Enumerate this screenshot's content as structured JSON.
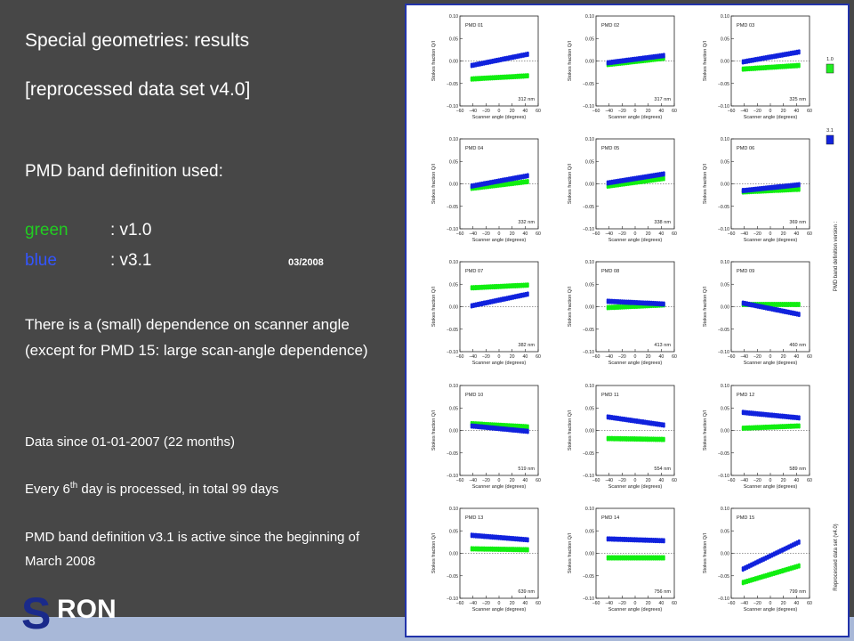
{
  "slide": {
    "title": "Special geometries: results",
    "subtitle": "[reprocessed data set v4.0]",
    "band_heading": "PMD band definition used:",
    "legend": [
      {
        "name": "green",
        "version": ": v1.0",
        "color": "#22cc22"
      },
      {
        "name": "blue",
        "version": ": v3.1",
        "color": "#3355ff"
      }
    ],
    "date": "03/2008",
    "dependence_text": "There is a (small) dependence on scanner angle (except for PMD 15: large scan-angle dependence)",
    "data_since": "Data since 01-01-2007 (22 months)",
    "every_pre": "Every 6",
    "every_sup": "th",
    "every_post": " day is processed, in total 99 days",
    "active_since": "PMD band definition v3.1 is active since the beginning of March 2008",
    "logo": "SRON"
  },
  "chart_data": {
    "type": "scatter",
    "xlabel": "Scanner angle (degrees)",
    "ylabel": "Stokes fraction Q/I",
    "xticks": [
      "−60",
      "−40",
      "−20",
      "0",
      "20",
      "40",
      "60"
    ],
    "yticks": [
      "−0.10",
      "−0.05",
      "0.00",
      "0.05",
      "0.10"
    ],
    "xlim": [
      -60,
      60
    ],
    "ylim": [
      -0.1,
      0.1
    ],
    "right_label_top": "PMD band definition version :",
    "right_label_bottom": "Reprocessed data set (v4.0)",
    "version_legend": [
      {
        "label": "1.0",
        "color": "#22ee22"
      },
      {
        "label": "3.1",
        "color": "#1122dd"
      }
    ],
    "panels": [
      {
        "name": "PMD 01",
        "wavelength": "312 nm",
        "green": [
          -0.04,
          -0.033
        ],
        "blue": [
          -0.01,
          0.015
        ]
      },
      {
        "name": "PMD 02",
        "wavelength": "317 nm",
        "green": [
          -0.008,
          0.006
        ],
        "blue": [
          -0.004,
          0.012
        ]
      },
      {
        "name": "PMD 03",
        "wavelength": "325 nm",
        "green": [
          -0.018,
          -0.01
        ],
        "blue": [
          -0.002,
          0.02
        ]
      },
      {
        "name": "PMD 04",
        "wavelength": "332 nm",
        "green": [
          -0.01,
          0.005
        ],
        "blue": [
          -0.005,
          0.018
        ]
      },
      {
        "name": "PMD 05",
        "wavelength": "338 nm",
        "green": [
          -0.005,
          0.012
        ],
        "blue": [
          0.002,
          0.022
        ]
      },
      {
        "name": "PMD 06",
        "wavelength": "369 nm",
        "green": [
          -0.018,
          -0.012
        ],
        "blue": [
          -0.015,
          -0.002
        ]
      },
      {
        "name": "PMD 07",
        "wavelength": "382 nm",
        "green": [
          0.042,
          0.048
        ],
        "blue": [
          0.002,
          0.028
        ]
      },
      {
        "name": "PMD 08",
        "wavelength": "413 nm",
        "green": [
          -0.002,
          0.004
        ],
        "blue": [
          0.012,
          0.006
        ]
      },
      {
        "name": "PMD 09",
        "wavelength": "460 nm",
        "green": [
          0.005,
          0.005
        ],
        "blue": [
          0.008,
          -0.017
        ]
      },
      {
        "name": "PMD 10",
        "wavelength": "519 nm",
        "green": [
          0.015,
          0.008
        ],
        "blue": [
          0.01,
          -0.002
        ]
      },
      {
        "name": "PMD 11",
        "wavelength": "554 nm",
        "green": [
          -0.018,
          -0.02
        ],
        "blue": [
          0.03,
          0.012
        ]
      },
      {
        "name": "PMD 12",
        "wavelength": "589 nm",
        "green": [
          0.005,
          0.01
        ],
        "blue": [
          0.04,
          0.028
        ]
      },
      {
        "name": "PMD 13",
        "wavelength": "639 nm",
        "green": [
          0.01,
          0.008
        ],
        "blue": [
          0.04,
          0.03
        ]
      },
      {
        "name": "PMD 14",
        "wavelength": "756 nm",
        "green": [
          -0.01,
          -0.01
        ],
        "blue": [
          0.032,
          0.028
        ]
      },
      {
        "name": "PMD 15",
        "wavelength": "799 nm",
        "green": [
          -0.065,
          -0.028
        ],
        "blue": [
          -0.035,
          0.025
        ]
      }
    ]
  }
}
